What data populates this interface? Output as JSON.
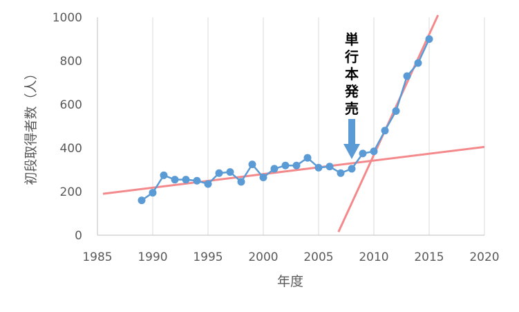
{
  "chart_data": {
    "type": "line",
    "xlabel": "年度",
    "ylabel": "初段取得者数（人）",
    "xlim": [
      1985,
      2020
    ],
    "ylim": [
      0,
      1000
    ],
    "x_ticks": [
      1985,
      1990,
      1995,
      2000,
      2005,
      2010,
      2015,
      2020
    ],
    "y_ticks": [
      0,
      200,
      400,
      600,
      800,
      1000
    ],
    "grid": "vertical",
    "series": [
      {
        "color": "#5B9BD5",
        "x": [
          1989,
          1990,
          1991,
          1992,
          1993,
          1994,
          1995,
          1996,
          1997,
          1998,
          1999,
          2000,
          2001,
          2002,
          2003,
          2004,
          2005,
          2006,
          2007,
          2008,
          2009,
          2010,
          2011,
          2012,
          2013,
          2014,
          2015
        ],
        "y": [
          160,
          195,
          275,
          255,
          255,
          250,
          235,
          285,
          290,
          245,
          325,
          265,
          305,
          320,
          320,
          355,
          310,
          315,
          285,
          305,
          375,
          385,
          480,
          570,
          730,
          790,
          900
        ]
      }
    ],
    "trend_lines": [
      {
        "color": "#F4898C",
        "x": [
          1985.5,
          2020
        ],
        "y": [
          190,
          405
        ]
      },
      {
        "color": "#F4898C",
        "x": [
          2006.8,
          2015.8
        ],
        "y": [
          15,
          1010
        ]
      }
    ],
    "annotation": {
      "text": "単行本発売",
      "x": 2008,
      "arrow_color": "#5B9BD5"
    }
  }
}
